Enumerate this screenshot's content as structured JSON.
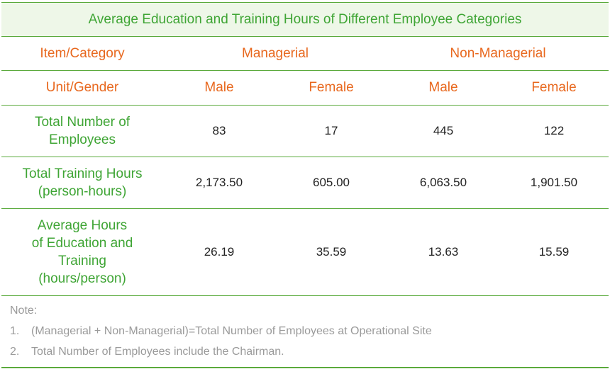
{
  "title": "Average Education and Training Hours of Different Employee Categories",
  "header": {
    "item_category": "Item/Category",
    "managerial": "Managerial",
    "non_managerial": "Non-Managerial",
    "unit_gender": "Unit/Gender",
    "male_1": "Male",
    "female_1": "Female",
    "male_2": "Male",
    "female_2": "Female"
  },
  "rows": [
    {
      "label": "Total Number of\nEmployees",
      "values": [
        "83",
        "17",
        "445",
        "122"
      ]
    },
    {
      "label": "Total Training Hours\n(person-hours)",
      "values": [
        "2,173.50",
        "605.00",
        "6,063.50",
        "1,901.50"
      ]
    },
    {
      "label": "Average Hours\nof Education and\nTraining\n(hours/person)",
      "values": [
        "26.19",
        "35.59",
        "13.63",
        "15.59"
      ]
    }
  ],
  "notes": {
    "title": "Note:",
    "items": [
      {
        "num": "1.",
        "text": "(Managerial + Non-Managerial)=Total Number of Employees at Operational Site"
      },
      {
        "num": "2.",
        "text": "Total Number of Employees include the Chairman."
      }
    ]
  },
  "colors": {
    "green_accent": "#3fa535",
    "orange_header": "#e8681e",
    "title_background": "#eef7e8",
    "note_gray": "#9a9a9a"
  }
}
